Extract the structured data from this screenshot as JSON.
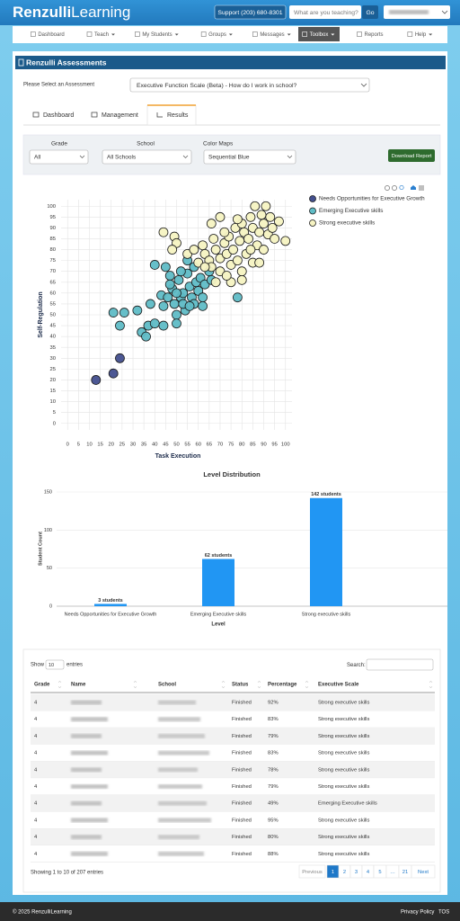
{
  "header": {
    "logo_bold": "Renzulli",
    "logo_light": "Learning",
    "support": "Support (203) 680-8301",
    "search_placeholder": "What are you teaching?",
    "search_button": "Go"
  },
  "nav": [
    "Dashboard",
    "Teach",
    "My Students",
    "Groups",
    "Messages",
    "Toolbox",
    "Reports",
    "Help"
  ],
  "panel_title": "Renzulli Assessments",
  "assessment": {
    "label": "Please Select an Assessment",
    "selected": "Executive Function Scale (Beta) - How do I work in school?"
  },
  "tabs": [
    "Dashboard",
    "Management",
    "Results"
  ],
  "filters": {
    "grade": {
      "label": "Grade",
      "value": "All"
    },
    "school": {
      "label": "School",
      "value": "All Schools"
    },
    "color_map": {
      "label": "Color Maps",
      "value": "Sequential Blue"
    },
    "download": "Download Report"
  },
  "chart_data": [
    {
      "type": "scatter",
      "xlabel": "Task Execution",
      "ylabel": "Self-Regulation",
      "xlim": [
        -3,
        103
      ],
      "ylim": [
        -3,
        103
      ],
      "xticks": [
        0,
        5,
        10,
        15,
        20,
        25,
        30,
        35,
        40,
        45,
        50,
        55,
        60,
        65,
        70,
        75,
        80,
        85,
        90,
        95,
        100
      ],
      "yticks": [
        0,
        5,
        10,
        15,
        20,
        25,
        30,
        35,
        40,
        45,
        50,
        55,
        60,
        65,
        70,
        75,
        80,
        85,
        90,
        95,
        100
      ],
      "grid": true,
      "series": [
        {
          "name": "Needs Opportunities for Executive Growth",
          "color": "#434f8e",
          "x": [
            13,
            21,
            24
          ],
          "values": [
            20,
            23,
            30
          ]
        },
        {
          "name": "Emerging Executive skills",
          "color": "#5fbcc6",
          "x": [
            21,
            24,
            26,
            32,
            34,
            36,
            37,
            40,
            38,
            40,
            43,
            44,
            45,
            47,
            48,
            49,
            50,
            50,
            51,
            52,
            53,
            54,
            55,
            56,
            57,
            58,
            59,
            60,
            61,
            62,
            63,
            65,
            66,
            47,
            52,
            55,
            58,
            62,
            78,
            50,
            46,
            53,
            56,
            44
          ],
          "values": [
            51,
            45,
            51,
            52,
            42,
            40,
            45,
            46,
            55,
            73,
            59,
            54,
            72,
            68,
            62,
            55,
            50,
            46,
            66,
            58,
            60,
            52,
            69,
            63,
            58,
            55,
            65,
            61,
            67,
            58,
            64,
            70,
            66,
            64,
            70,
            75,
            72,
            54,
            58,
            60,
            58,
            55,
            54,
            45
          ]
        },
        {
          "name": "Strong executive skills",
          "color": "#f6f3c2",
          "x": [
            44,
            49,
            50,
            48,
            55,
            58,
            60,
            62,
            63,
            65,
            66,
            67,
            68,
            70,
            70,
            72,
            73,
            74,
            75,
            76,
            77,
            78,
            79,
            80,
            80,
            81,
            82,
            83,
            84,
            85,
            85,
            86,
            87,
            88,
            89,
            90,
            90,
            91,
            92,
            93,
            94,
            95,
            97,
            100,
            66,
            70,
            75,
            80,
            88,
            73,
            63,
            68,
            72,
            78,
            84
          ],
          "values": [
            88,
            86,
            83,
            80,
            78,
            80,
            74,
            82,
            78,
            75,
            72,
            85,
            80,
            70,
            76,
            83,
            78,
            86,
            73,
            80,
            90,
            75,
            84,
            92,
            70,
            88,
            78,
            85,
            95,
            74,
            90,
            100,
            82,
            88,
            96,
            80,
            92,
            100,
            87,
            95,
            90,
            85,
            93,
            84,
            92,
            95,
            65,
            66,
            74,
            68,
            72,
            65,
            88,
            94,
            80
          ]
        }
      ]
    },
    {
      "type": "bar",
      "title": "Level Distribution",
      "xlabel": "Level",
      "ylabel": "Student Count",
      "categories": [
        "Needs Opportunities for Executive Growth",
        "Emerging Executive skills",
        "Strong executive skills"
      ],
      "values": [
        3,
        62,
        142
      ],
      "value_labels": [
        "3 students",
        "62 students",
        "142 students"
      ],
      "color": "#2196f3",
      "ylim": [
        0,
        150
      ],
      "yticks": [
        0,
        50,
        100,
        150
      ],
      "grid": true
    }
  ],
  "table": {
    "show": "Show",
    "length": "10",
    "entries": "entries",
    "search": "Search:",
    "columns": [
      "Grade",
      "Name",
      "School",
      "Status",
      "Percentage",
      "Executive Scale"
    ],
    "rows": [
      {
        "grade": "4",
        "status": "Finished",
        "percentage": "92%",
        "scale": "Strong executive skills"
      },
      {
        "grade": "4",
        "status": "Finished",
        "percentage": "83%",
        "scale": "Strong executive skills"
      },
      {
        "grade": "4",
        "status": "Finished",
        "percentage": "79%",
        "scale": "Strong executive skills"
      },
      {
        "grade": "4",
        "status": "Finished",
        "percentage": "83%",
        "scale": "Strong executive skills"
      },
      {
        "grade": "4",
        "status": "Finished",
        "percentage": "78%",
        "scale": "Strong executive skills"
      },
      {
        "grade": "4",
        "status": "Finished",
        "percentage": "79%",
        "scale": "Strong executive skills"
      },
      {
        "grade": "4",
        "status": "Finished",
        "percentage": "49%",
        "scale": "Emerging Executive skills"
      },
      {
        "grade": "4",
        "status": "Finished",
        "percentage": "95%",
        "scale": "Strong executive skills"
      },
      {
        "grade": "4",
        "status": "Finished",
        "percentage": "80%",
        "scale": "Strong executive skills"
      },
      {
        "grade": "4",
        "status": "Finished",
        "percentage": "88%",
        "scale": "Strong executive skills"
      }
    ],
    "info": "Showing 1 to 10 of 207 entries",
    "pagination": [
      "Previous",
      "1",
      "2",
      "3",
      "4",
      "5",
      "…",
      "21",
      "Next"
    ]
  },
  "footer": {
    "copyright": "© 2025 RenzulliLearning",
    "links": [
      "Privacy Policy",
      "TOS"
    ]
  }
}
